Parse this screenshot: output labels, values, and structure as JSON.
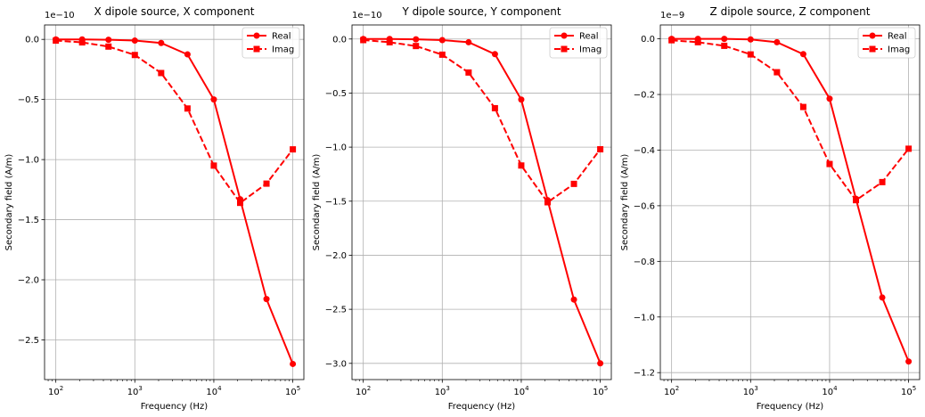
{
  "chart_data": [
    {
      "type": "line",
      "title": "X dipole source, X component",
      "xlabel": "Frequency (Hz)",
      "ylabel": "Secondary field (A/m)",
      "x_scale": "log",
      "x_tick_labels": [
        "10^2",
        "10^3",
        "10^4",
        "10^5"
      ],
      "x_tick_values": [
        100,
        1000,
        10000,
        100000
      ],
      "offset_label": "1e−10",
      "y_tick_labels": [
        "0.0",
        "−0.5",
        "−1.0",
        "−1.5",
        "−2.0",
        "−2.5"
      ],
      "y_tick_values": [
        0.0,
        -0.5,
        -1.0,
        -1.5,
        -2.0,
        -2.5
      ],
      "ylim": [
        -2.83,
        0.12
      ],
      "grid": true,
      "legend_position": "upper right",
      "x": [
        100,
        215.4,
        464.2,
        1000,
        2154.4,
        4641.6,
        10000,
        21544,
        46416,
        100000
      ],
      "series": [
        {
          "name": "Real",
          "style": "solid",
          "marker": "circle",
          "values": [
            0.0,
            0.0,
            -0.003,
            -0.01,
            -0.03,
            -0.125,
            -0.5,
            -1.33,
            -2.16,
            -2.7
          ]
        },
        {
          "name": "Imag",
          "style": "dashed",
          "marker": "square",
          "values": [
            -0.01,
            -0.025,
            -0.06,
            -0.13,
            -0.28,
            -0.575,
            -1.05,
            -1.36,
            -1.2,
            -0.915
          ]
        }
      ]
    },
    {
      "type": "line",
      "title": "Y dipole source, Y component",
      "xlabel": "Frequency (Hz)",
      "ylabel": "Secondary field (A/m)",
      "x_scale": "log",
      "x_tick_labels": [
        "10^2",
        "10^3",
        "10^4",
        "10^5"
      ],
      "x_tick_values": [
        100,
        1000,
        10000,
        100000
      ],
      "offset_label": "1e−10",
      "y_tick_labels": [
        "0.0",
        "−0.5",
        "−1.0",
        "−1.5",
        "−2.0",
        "−2.5",
        "−3.0"
      ],
      "y_tick_values": [
        0.0,
        -0.5,
        -1.0,
        -1.5,
        -2.0,
        -2.5,
        -3.0
      ],
      "ylim": [
        -3.15,
        0.13
      ],
      "grid": true,
      "legend_position": "upper right",
      "x": [
        100,
        215.4,
        464.2,
        1000,
        2154.4,
        4641.6,
        10000,
        21544,
        46416,
        100000
      ],
      "series": [
        {
          "name": "Real",
          "style": "solid",
          "marker": "circle",
          "values": [
            0.0,
            0.0,
            -0.003,
            -0.01,
            -0.03,
            -0.14,
            -0.56,
            -1.49,
            -2.41,
            -3.0
          ]
        },
        {
          "name": "Imag",
          "style": "dashed",
          "marker": "square",
          "values": [
            -0.01,
            -0.03,
            -0.065,
            -0.145,
            -0.31,
            -0.64,
            -1.17,
            -1.51,
            -1.34,
            -1.02
          ]
        }
      ]
    },
    {
      "type": "line",
      "title": "Z dipole source, Z component",
      "xlabel": "Frequency (Hz)",
      "ylabel": "Secondary field (A/m)",
      "x_scale": "log",
      "x_tick_labels": [
        "10^2",
        "10^3",
        "10^4",
        "10^5"
      ],
      "x_tick_values": [
        100,
        1000,
        10000,
        100000
      ],
      "offset_label": "1e−9",
      "y_tick_labels": [
        "0.0",
        "−0.2",
        "−0.4",
        "−0.6",
        "−0.8",
        "−1.0",
        "−1.2"
      ],
      "y_tick_values": [
        0.0,
        -0.2,
        -0.4,
        -0.6,
        -0.8,
        -1.0,
        -1.2
      ],
      "ylim": [
        -1.225,
        0.05
      ],
      "grid": true,
      "legend_position": "upper right",
      "x": [
        100,
        215.4,
        464.2,
        1000,
        2154.4,
        4641.6,
        10000,
        21544,
        46416,
        100000
      ],
      "series": [
        {
          "name": "Real",
          "style": "solid",
          "marker": "circle",
          "values": [
            0.0,
            0.0,
            0.0,
            -0.002,
            -0.012,
            -0.055,
            -0.215,
            -0.575,
            -0.93,
            -1.16
          ]
        },
        {
          "name": "Imag",
          "style": "dashed",
          "marker": "square",
          "values": [
            -0.005,
            -0.012,
            -0.025,
            -0.056,
            -0.12,
            -0.245,
            -0.45,
            -0.58,
            -0.515,
            -0.395
          ]
        }
      ]
    }
  ],
  "colors": {
    "line": "#ff0000",
    "grid": "#b0b0b0",
    "axes": "#000000"
  }
}
